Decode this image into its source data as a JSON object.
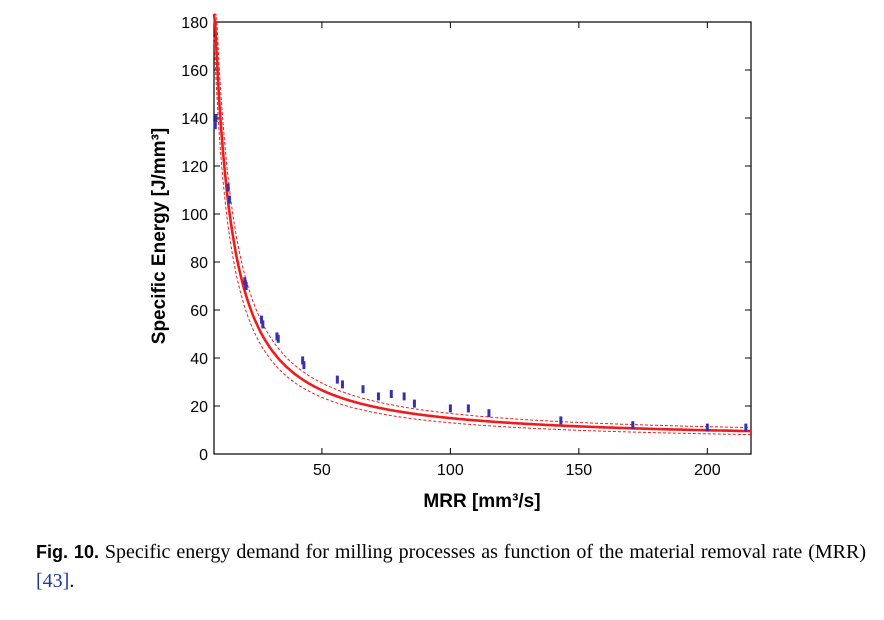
{
  "chart_data": {
    "type": "scatter",
    "xlabel": "MRR [mm³/s]",
    "ylabel": "Specific Energy [J/mm³]",
    "xlim": [
      8,
      217
    ],
    "ylim": [
      0,
      180
    ],
    "xticks": [
      50,
      100,
      150,
      200
    ],
    "yticks": [
      0,
      20,
      40,
      60,
      80,
      100,
      120,
      140,
      160,
      180
    ],
    "grid": false,
    "colors": {
      "fit": "#ee1c1c",
      "points": "#3a2fb0",
      "band": "#ee1c1c"
    },
    "series": [
      {
        "type": "scatter",
        "x": [
          8.5,
          8.8,
          13.5,
          14,
          20,
          20.5,
          26.5,
          27,
          32.5,
          33,
          42.5,
          43,
          56,
          58,
          66,
          72,
          77,
          82,
          86,
          100,
          107,
          115,
          143,
          171,
          200,
          215
        ],
        "y": [
          137,
          140,
          111,
          106,
          72,
          70,
          56,
          54,
          49,
          48,
          39,
          37,
          31,
          29,
          27,
          24,
          25,
          24,
          21,
          19,
          19,
          17,
          14,
          12,
          11,
          11
        ]
      },
      {
        "type": "line",
        "formula": "2250/x^1.2 + 6",
        "style": "solid"
      },
      {
        "type": "line",
        "formula": "confidence band",
        "style": "dashed"
      }
    ]
  },
  "caption": {
    "label": "Fig. 10.",
    "text": " Specific energy demand for milling processes as function of the material removal rate (MRR) ",
    "ref": "[43]",
    "end": "."
  }
}
